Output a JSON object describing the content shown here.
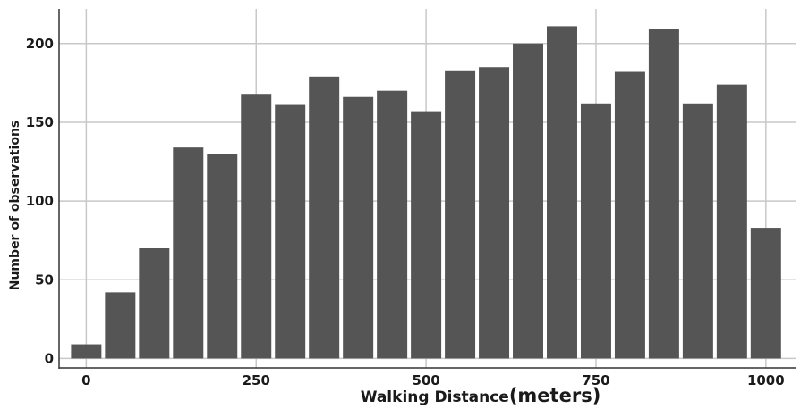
{
  "chart_data": {
    "type": "bar",
    "title": "",
    "xlabel": "Walking Distance",
    "xlabel_unit": "(meters)",
    "ylabel": "Number of observations",
    "bin_width": 50,
    "bins": [
      {
        "x": 0,
        "value": 9
      },
      {
        "x": 50,
        "value": 42
      },
      {
        "x": 100,
        "value": 70
      },
      {
        "x": 150,
        "value": 134
      },
      {
        "x": 200,
        "value": 130
      },
      {
        "x": 250,
        "value": 168
      },
      {
        "x": 300,
        "value": 161
      },
      {
        "x": 350,
        "value": 179
      },
      {
        "x": 400,
        "value": 166
      },
      {
        "x": 450,
        "value": 170
      },
      {
        "x": 500,
        "value": 157
      },
      {
        "x": 550,
        "value": 183
      },
      {
        "x": 600,
        "value": 185
      },
      {
        "x": 650,
        "value": 200
      },
      {
        "x": 700,
        "value": 211
      },
      {
        "x": 750,
        "value": 162
      },
      {
        "x": 800,
        "value": 182
      },
      {
        "x": 850,
        "value": 209
      },
      {
        "x": 900,
        "value": 162
      },
      {
        "x": 950,
        "value": 174
      },
      {
        "x": 1000,
        "value": 83
      }
    ],
    "xticks": [
      0,
      250,
      500,
      750,
      1000
    ],
    "yticks": [
      0,
      50,
      100,
      150,
      200
    ],
    "xlim": [
      -40,
      1045
    ],
    "ylim": [
      -6,
      222
    ],
    "grid": true,
    "bar_color": "#555555",
    "grid_color": "#c8c8c8"
  }
}
